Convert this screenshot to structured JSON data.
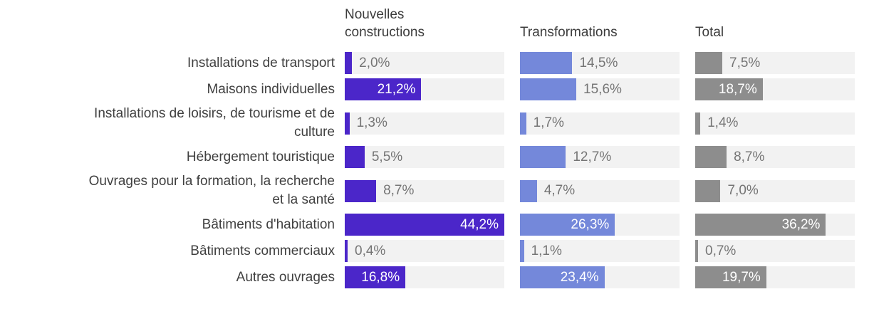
{
  "chart_data": {
    "type": "bar",
    "orientation": "horizontal",
    "title": "",
    "xlabel": "",
    "ylabel": "",
    "xlim": [
      0,
      44.2
    ],
    "grid": false,
    "legend_position": "column-headers",
    "value_format": "percent-french-comma",
    "track_color": "#f2f2f2",
    "value_label_inside_color": "#ffffff",
    "value_label_outside_color": "#757575",
    "categories": [
      "Installations de transport",
      "Maisons individuelles",
      "Installations de loisirs, de tourisme et de\nculture",
      "Hébergement touristique",
      "Ouvrages pour la formation, la recherche\net la santé",
      "Bâtiments d'habitation",
      "Bâtiments commerciaux",
      "Autres ouvrages"
    ],
    "series": [
      {
        "name": "Nouvelles constructions",
        "color": "#4b26c9",
        "values": [
          2.0,
          21.2,
          1.3,
          5.5,
          8.7,
          44.2,
          0.4,
          16.8
        ],
        "labels": [
          "2,0%",
          "21,2%",
          "1,3%",
          "5,5%",
          "8,7%",
          "44,2%",
          "0,4%",
          "16,8%"
        ]
      },
      {
        "name": "Transformations",
        "color": "#7488da",
        "values": [
          14.5,
          15.6,
          1.7,
          12.7,
          4.7,
          26.3,
          1.1,
          23.4
        ],
        "labels": [
          "14,5%",
          "15,6%",
          "1,7%",
          "12,7%",
          "4,7%",
          "26,3%",
          "1,1%",
          "23,4%"
        ]
      },
      {
        "name": "Total",
        "color": "#8d8d8d",
        "values": [
          7.5,
          18.7,
          1.4,
          8.7,
          7.0,
          36.2,
          0.7,
          19.7
        ],
        "labels": [
          "7,5%",
          "18,7%",
          "1,4%",
          "8,7%",
          "7,0%",
          "36,2%",
          "0,7%",
          "19,7%"
        ]
      }
    ]
  }
}
